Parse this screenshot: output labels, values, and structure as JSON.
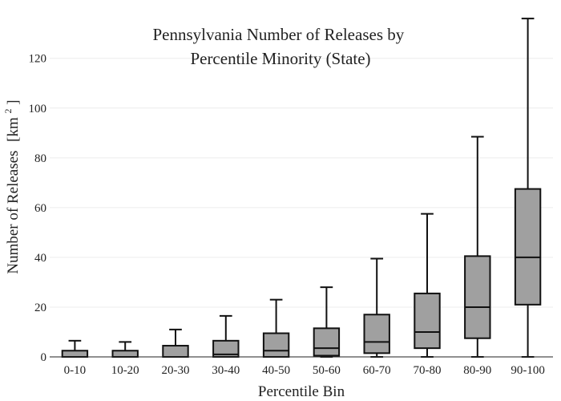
{
  "chart_data": {
    "type": "box",
    "title_lines": [
      "Pennsylvania Number of Releases by",
      "Percentile Minority (State)"
    ],
    "xlabel": "Percentile Bin",
    "ylabel": "Number of Releases",
    "ylabel_unit": "[km",
    "ylabel_unit_sup": "2",
    "ylabel_unit_close": "]",
    "ylim": [
      0,
      137
    ],
    "yticks": [
      0,
      20,
      40,
      60,
      80,
      100,
      120
    ],
    "ytick_labels": [
      "0",
      "20",
      "40",
      "60",
      "80",
      "100",
      "120"
    ],
    "grid": true,
    "legend": "none",
    "box_color": "#a0a0a0",
    "line_color": "#111111",
    "categories": [
      "0-10",
      "10-20",
      "20-30",
      "30-40",
      "40-50",
      "50-60",
      "60-70",
      "70-80",
      "80-90",
      "90-100"
    ],
    "boxes": [
      {
        "category": "0-10",
        "min": 0,
        "q1": 0,
        "median": 0,
        "q3": 2.5,
        "max": 6.5
      },
      {
        "category": "10-20",
        "min": 0,
        "q1": 0,
        "median": 0,
        "q3": 2.5,
        "max": 6
      },
      {
        "category": "20-30",
        "min": 0,
        "q1": 0,
        "median": 0,
        "q3": 4.5,
        "max": 11
      },
      {
        "category": "30-40",
        "min": 0,
        "q1": 0,
        "median": 1,
        "q3": 6.5,
        "max": 16.5
      },
      {
        "category": "40-50",
        "min": 0,
        "q1": 0,
        "median": 2.5,
        "q3": 9.5,
        "max": 23
      },
      {
        "category": "50-60",
        "min": 0,
        "q1": 0.5,
        "median": 3.5,
        "q3": 11.5,
        "max": 28
      },
      {
        "category": "60-70",
        "min": 0,
        "q1": 1.5,
        "median": 6,
        "q3": 17,
        "max": 39.5
      },
      {
        "category": "70-80",
        "min": 0,
        "q1": 3.5,
        "median": 10,
        "q3": 25.5,
        "max": 57.5
      },
      {
        "category": "80-90",
        "min": 0,
        "q1": 7.5,
        "median": 20,
        "q3": 40.5,
        "max": 88.5
      },
      {
        "category": "90-100",
        "min": 0,
        "q1": 21,
        "median": 40,
        "q3": 67.5,
        "max": 136
      }
    ]
  }
}
